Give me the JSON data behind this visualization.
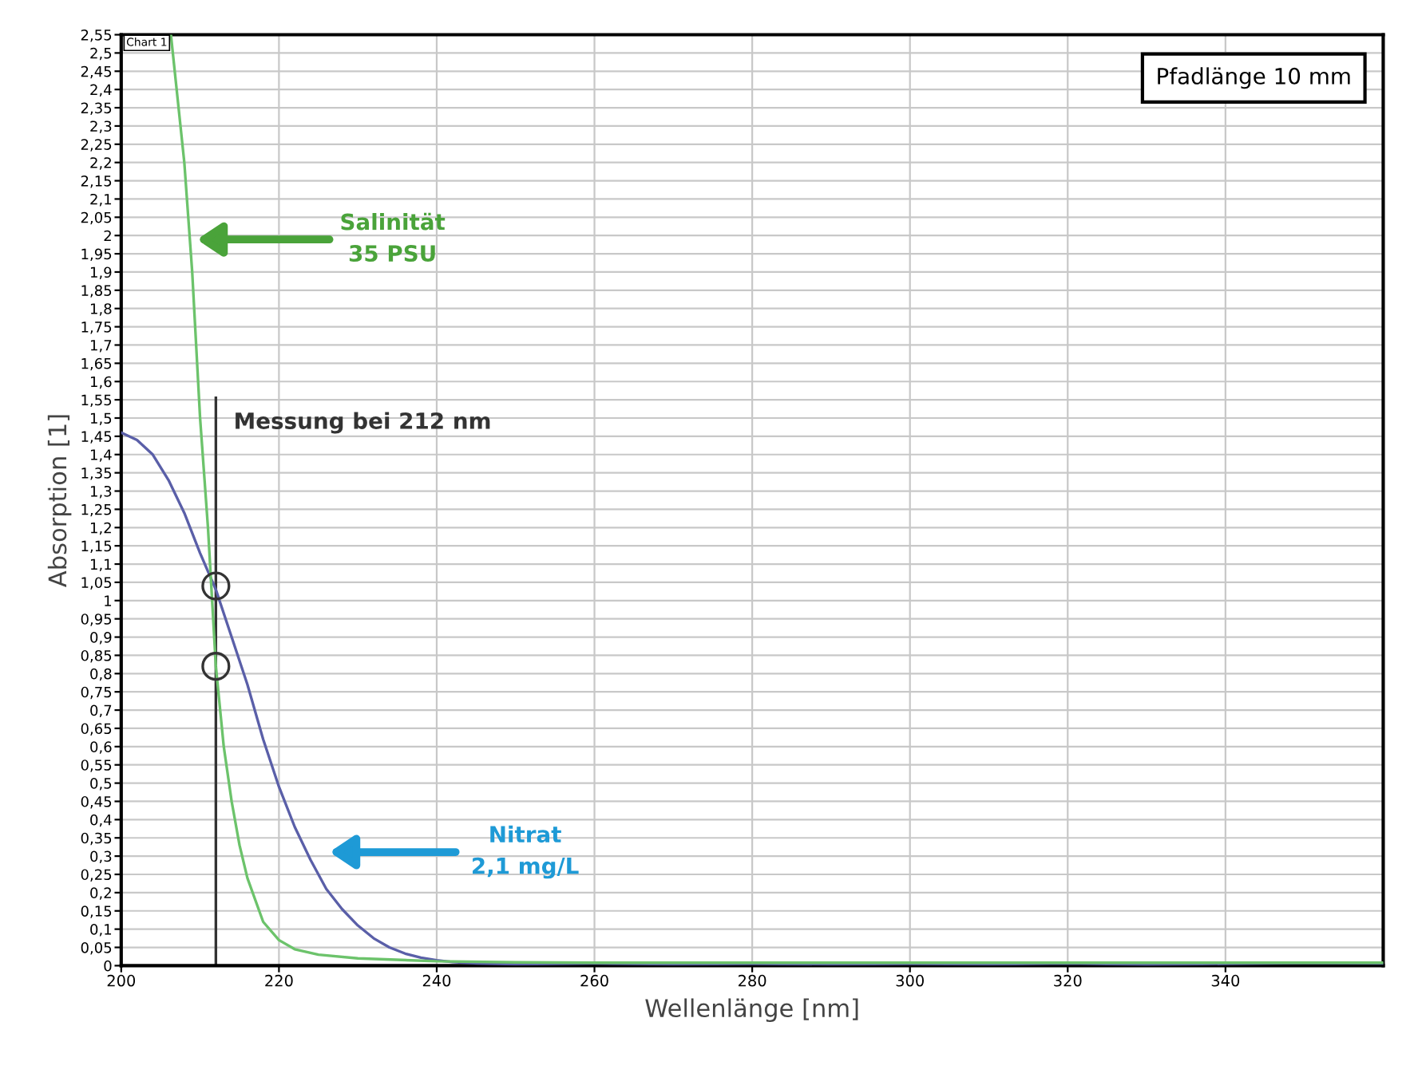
{
  "chart_data": {
    "type": "line",
    "xlabel": "Wellenlänge [nm]",
    "ylabel": "Absorption [1]",
    "xlim": [
      200,
      360
    ],
    "xticks": [
      200,
      220,
      240,
      260,
      280,
      300,
      320,
      340
    ],
    "ylim": [
      0,
      2.55
    ],
    "yticks": [
      {
        "value": 0,
        "label": "0"
      },
      {
        "value": 0.05,
        "label": "0,05"
      },
      {
        "value": 0.1,
        "label": "0,1"
      },
      {
        "value": 0.15,
        "label": "0,15"
      },
      {
        "value": 0.2,
        "label": "0,2"
      },
      {
        "value": 0.25,
        "label": "0,25"
      },
      {
        "value": 0.3,
        "label": "0,3"
      },
      {
        "value": 0.35,
        "label": "0,35"
      },
      {
        "value": 0.4,
        "label": "0,4"
      },
      {
        "value": 0.45,
        "label": "0,45"
      },
      {
        "value": 0.5,
        "label": "0,5"
      },
      {
        "value": 0.55,
        "label": "0,55"
      },
      {
        "value": 0.6,
        "label": "0,6"
      },
      {
        "value": 0.65,
        "label": "0,65"
      },
      {
        "value": 0.7,
        "label": "0,7"
      },
      {
        "value": 0.75,
        "label": "0,75"
      },
      {
        "value": 0.8,
        "label": "0,8"
      },
      {
        "value": 0.85,
        "label": "0,85"
      },
      {
        "value": 0.9,
        "label": "0,9"
      },
      {
        "value": 0.95,
        "label": "0,95"
      },
      {
        "value": 1,
        "label": "1"
      },
      {
        "value": 1.05,
        "label": "1,05"
      },
      {
        "value": 1.1,
        "label": "1,1"
      },
      {
        "value": 1.15,
        "label": "1,15"
      },
      {
        "value": 1.2,
        "label": "1,2"
      },
      {
        "value": 1.25,
        "label": "1,25"
      },
      {
        "value": 1.3,
        "label": "1,3"
      },
      {
        "value": 1.35,
        "label": "1,35"
      },
      {
        "value": 1.4,
        "label": "1,4"
      },
      {
        "value": 1.45,
        "label": "1,45"
      },
      {
        "value": 1.5,
        "label": "1,5"
      },
      {
        "value": 1.55,
        "label": "1,55"
      },
      {
        "value": 1.6,
        "label": "1,6"
      },
      {
        "value": 1.65,
        "label": "1,65"
      },
      {
        "value": 1.7,
        "label": "1,7"
      },
      {
        "value": 1.75,
        "label": "1,75"
      },
      {
        "value": 1.8,
        "label": "1,8"
      },
      {
        "value": 1.85,
        "label": "1,85"
      },
      {
        "value": 1.9,
        "label": "1,9"
      },
      {
        "value": 1.95,
        "label": "1,95"
      },
      {
        "value": 2,
        "label": "2"
      },
      {
        "value": 2.05,
        "label": "2,05"
      },
      {
        "value": 2.1,
        "label": "2,1"
      },
      {
        "value": 2.15,
        "label": "2,15"
      },
      {
        "value": 2.2,
        "label": "2,2"
      },
      {
        "value": 2.25,
        "label": "2,25"
      },
      {
        "value": 2.3,
        "label": "2,3"
      },
      {
        "value": 2.35,
        "label": "2,35"
      },
      {
        "value": 2.4,
        "label": "2,4"
      },
      {
        "value": 2.45,
        "label": "2,45"
      },
      {
        "value": 2.5,
        "label": "2,5"
      },
      {
        "value": 2.55,
        "label": "2,55"
      }
    ],
    "grid": true,
    "marker": "none",
    "line_style": "solid",
    "series": [
      {
        "color": "#5a5fa8",
        "x": [
          200,
          202,
          204,
          206,
          208,
          210,
          212,
          214,
          216,
          218,
          220,
          222,
          224,
          226,
          228,
          230,
          232,
          234,
          236,
          238,
          240,
          242,
          245,
          250,
          260,
          270,
          280,
          290,
          300,
          310,
          320,
          330,
          340,
          350,
          360
        ],
        "values": [
          1.46,
          1.44,
          1.4,
          1.33,
          1.24,
          1.13,
          1.03,
          0.9,
          0.77,
          0.62,
          0.49,
          0.38,
          0.29,
          0.21,
          0.155,
          0.11,
          0.075,
          0.05,
          0.033,
          0.022,
          0.015,
          0.01,
          0.006,
          0.004,
          0.006,
          0.004,
          0.005,
          0.004,
          0.005,
          0.004,
          0.006,
          0.003,
          0.005,
          0.007,
          0.006
        ]
      },
      {
        "color": "#6cc36b",
        "x": [
          206.3,
          208,
          209,
          210,
          211,
          212,
          213,
          214,
          215,
          216,
          218,
          220,
          222,
          225,
          230,
          240,
          250,
          260,
          280,
          300,
          320,
          340,
          360
        ],
        "values": [
          2.55,
          2.2,
          1.9,
          1.5,
          1.2,
          0.82,
          0.6,
          0.45,
          0.33,
          0.24,
          0.12,
          0.07,
          0.045,
          0.03,
          0.02,
          0.012,
          0.009,
          0.008,
          0.008,
          0.008,
          0.008,
          0.008,
          0.008
        ]
      },
      {
        "type": "scatter",
        "marker": "circle",
        "color": "#333333",
        "x": [
          212,
          212
        ],
        "values": [
          1.04,
          0.82
        ]
      }
    ],
    "ref_lines": [
      {
        "axis": "x",
        "value": 212,
        "label": "Messung bei 212 nm",
        "color": "#333333"
      }
    ],
    "annotations": [
      "Salinität\n35 PSU",
      "Nitrat\n2,1 mg/L",
      "Pfadlänge 10 mm",
      "Chart 1"
    ]
  }
}
